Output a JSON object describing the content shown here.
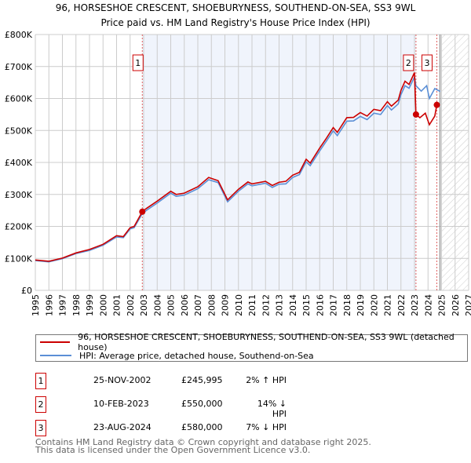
{
  "chart_data": {
    "type": "line",
    "title": "96, HORSESHOE CRESCENT, SHOEBURYNESS, SOUTHEND-ON-SEA, SS3 9WL",
    "subtitle": "Price paid vs. HM Land Registry's House Price Index (HPI)",
    "xlim": [
      1995,
      2027
    ],
    "ylim": [
      0,
      800000
    ],
    "x_ticks": [
      "1995",
      "1996",
      "1997",
      "1998",
      "1999",
      "2000",
      "2001",
      "2002",
      "2003",
      "2004",
      "2005",
      "2006",
      "2007",
      "2008",
      "2009",
      "2010",
      "2011",
      "2012",
      "2013",
      "2014",
      "2015",
      "2016",
      "2017",
      "2018",
      "2019",
      "2020",
      "2021",
      "2022",
      "2023",
      "2024",
      "2025",
      "2026",
      "2027"
    ],
    "y_ticks": [
      {
        "v": 0,
        "l": "£0"
      },
      {
        "v": 100000,
        "l": "£100K"
      },
      {
        "v": 200000,
        "l": "£200K"
      },
      {
        "v": 300000,
        "l": "£300K"
      },
      {
        "v": 400000,
        "l": "£400K"
      },
      {
        "v": 500000,
        "l": "£500K"
      },
      {
        "v": 600000,
        "l": "£600K"
      },
      {
        "v": 700000,
        "l": "£700K"
      },
      {
        "v": 800000,
        "l": "£800K"
      }
    ],
    "grid": true,
    "shaded_range": [
      2002.9,
      2023.11
    ],
    "forecast_hatch_from": 2025.0,
    "series": [
      {
        "name": "96, HORSESHOE CRESCENT, SHOEBURYNESS, SOUTHEND-ON-SEA, SS3 9WL (detached house)",
        "color": "#cc0000",
        "points": [
          [
            1995,
            95000
          ],
          [
            1996,
            91000
          ],
          [
            1997,
            101000
          ],
          [
            1998,
            117000
          ],
          [
            1999,
            128000
          ],
          [
            2000,
            144000
          ],
          [
            2001,
            171000
          ],
          [
            2001.5,
            168000
          ],
          [
            2002,
            196000
          ],
          [
            2002.3,
            200000
          ],
          [
            2002.9,
            246000
          ],
          [
            2003.2,
            256000
          ],
          [
            2004,
            279000
          ],
          [
            2005,
            310000
          ],
          [
            2005.4,
            300000
          ],
          [
            2006,
            304000
          ],
          [
            2007,
            324000
          ],
          [
            2007.8,
            353000
          ],
          [
            2008.5,
            343000
          ],
          [
            2009.2,
            283000
          ],
          [
            2010,
            316000
          ],
          [
            2010.7,
            339000
          ],
          [
            2011,
            333000
          ],
          [
            2012,
            341000
          ],
          [
            2012.5,
            328000
          ],
          [
            2013,
            338000
          ],
          [
            2013.5,
            341000
          ],
          [
            2014,
            360000
          ],
          [
            2014.5,
            369000
          ],
          [
            2015,
            410000
          ],
          [
            2015.3,
            398000
          ],
          [
            2016,
            445000
          ],
          [
            2016.5,
            476000
          ],
          [
            2017,
            509000
          ],
          [
            2017.3,
            494000
          ],
          [
            2018,
            540000
          ],
          [
            2018.5,
            541000
          ],
          [
            2019,
            556000
          ],
          [
            2019.5,
            545000
          ],
          [
            2020,
            566000
          ],
          [
            2020.5,
            562000
          ],
          [
            2021,
            590000
          ],
          [
            2021.3,
            576000
          ],
          [
            2021.8,
            595000
          ],
          [
            2022,
            625000
          ],
          [
            2022.3,
            654000
          ],
          [
            2022.6,
            644000
          ],
          [
            2023,
            681000
          ],
          [
            2023.11,
            550000
          ],
          [
            2023.4,
            540000
          ],
          [
            2023.8,
            554000
          ],
          [
            2024.1,
            518000
          ],
          [
            2024.5,
            545000
          ],
          [
            2024.65,
            580000
          ]
        ]
      },
      {
        "name": "HPI: Average price, detached house, Southend-on-Sea",
        "color": "#5b8fd6",
        "points": [
          [
            1995,
            93000
          ],
          [
            1996,
            89000
          ],
          [
            1997,
            99000
          ],
          [
            1998,
            115000
          ],
          [
            1999,
            125000
          ],
          [
            2000,
            141000
          ],
          [
            2001,
            167000
          ],
          [
            2001.5,
            165000
          ],
          [
            2002,
            192000
          ],
          [
            2002.3,
            196000
          ],
          [
            2002.9,
            240000
          ],
          [
            2003.2,
            250000
          ],
          [
            2004,
            273000
          ],
          [
            2005,
            304000
          ],
          [
            2005.4,
            294000
          ],
          [
            2006,
            298000
          ],
          [
            2007,
            318000
          ],
          [
            2007.8,
            346000
          ],
          [
            2008.5,
            337000
          ],
          [
            2009.2,
            277000
          ],
          [
            2010,
            310000
          ],
          [
            2010.7,
            333000
          ],
          [
            2011,
            327000
          ],
          [
            2012,
            335000
          ],
          [
            2012.5,
            322000
          ],
          [
            2013,
            332000
          ],
          [
            2013.5,
            333000
          ],
          [
            2014,
            353000
          ],
          [
            2014.5,
            362000
          ],
          [
            2015,
            402000
          ],
          [
            2015.3,
            390000
          ],
          [
            2016,
            436000
          ],
          [
            2016.5,
            467000
          ],
          [
            2017,
            499000
          ],
          [
            2017.3,
            484000
          ],
          [
            2018,
            529000
          ],
          [
            2018.5,
            530000
          ],
          [
            2019,
            544000
          ],
          [
            2019.5,
            534000
          ],
          [
            2020,
            554000
          ],
          [
            2020.5,
            550000
          ],
          [
            2021,
            578000
          ],
          [
            2021.3,
            564000
          ],
          [
            2021.8,
            583000
          ],
          [
            2022,
            612000
          ],
          [
            2022.3,
            640000
          ],
          [
            2022.6,
            632000
          ],
          [
            2023,
            667000
          ],
          [
            2023.11,
            640000
          ],
          [
            2023.5,
            623000
          ],
          [
            2023.9,
            640000
          ],
          [
            2024.1,
            600000
          ],
          [
            2024.5,
            631000
          ],
          [
            2024.9,
            622000
          ]
        ]
      }
    ],
    "sales": [
      {
        "n": "1",
        "x": 2002.9,
        "y": 245995
      },
      {
        "n": "2",
        "x": 2023.11,
        "y": 550000
      },
      {
        "n": "3",
        "x": 2024.65,
        "y": 580000
      }
    ]
  },
  "legend": [
    "96, HORSESHOE CRESCENT, SHOEBURYNESS, SOUTHEND-ON-SEA, SS3 9WL (detached house)",
    "HPI: Average price, detached house, Southend-on-Sea"
  ],
  "table": [
    {
      "n": "1",
      "date": "25-NOV-2002",
      "price": "£245,995",
      "hpi": "2% ↑ HPI"
    },
    {
      "n": "2",
      "date": "10-FEB-2023",
      "price": "£550,000",
      "hpi": "14% ↓ HPI"
    },
    {
      "n": "3",
      "date": "23-AUG-2024",
      "price": "£580,000",
      "hpi": "7% ↓ HPI"
    }
  ],
  "footer": [
    "Contains HM Land Registry data © Crown copyright and database right 2025.",
    "This data is licensed under the Open Government Licence v3.0."
  ]
}
